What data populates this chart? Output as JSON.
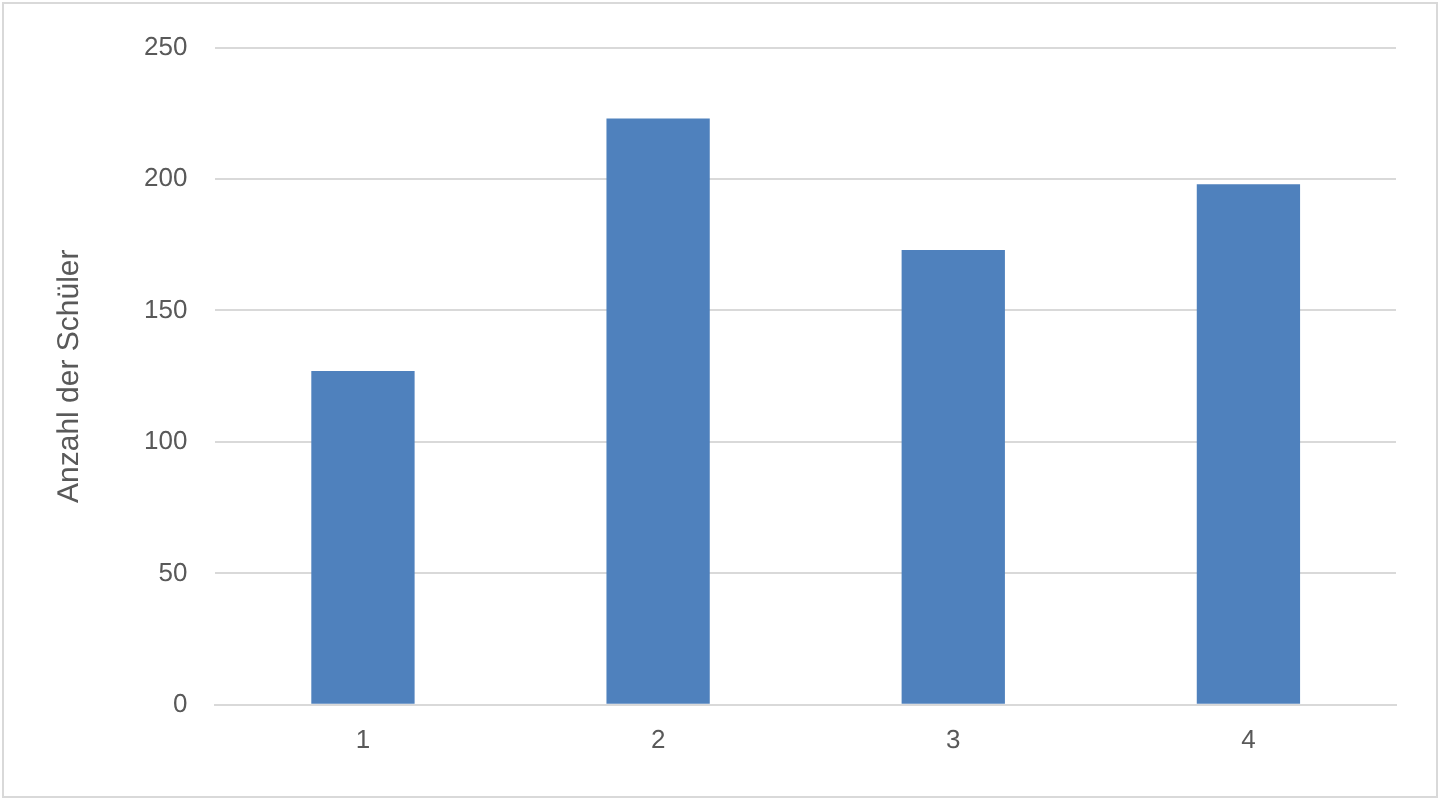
{
  "chart_data": {
    "type": "bar",
    "ylabel": "Anzahl der Schüler",
    "categories": [
      "1",
      "2",
      "3",
      "4"
    ],
    "values": [
      127,
      223,
      173,
      198
    ],
    "color": "#4f81bd",
    "ylim": [
      0,
      250
    ],
    "yticks": [
      0,
      50,
      100,
      150,
      200,
      250
    ],
    "grid": "y",
    "legend": false
  }
}
